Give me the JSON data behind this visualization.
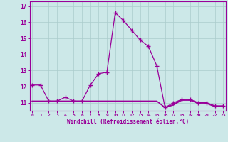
{
  "xlabel": "Windchill (Refroidissement éolien,°C)",
  "x": [
    0,
    1,
    2,
    3,
    4,
    5,
    6,
    7,
    8,
    9,
    10,
    11,
    12,
    13,
    14,
    15,
    16,
    17,
    18,
    19,
    20,
    21,
    22,
    23
  ],
  "line1": [
    12.1,
    12.1,
    11.1,
    11.1,
    11.35,
    11.1,
    11.1,
    12.1,
    12.8,
    12.9,
    16.6,
    16.1,
    15.5,
    14.9,
    14.5,
    13.3,
    10.7,
    11.0,
    11.2,
    11.2,
    11.0,
    11.0,
    10.8,
    10.8
  ],
  "line2": [
    11.1,
    11.1,
    11.1,
    11.1,
    11.1,
    11.1,
    11.1,
    11.1,
    11.1,
    11.1,
    11.1,
    11.1,
    11.1,
    11.1,
    11.1,
    11.1,
    10.7,
    10.9,
    11.2,
    11.2,
    11.0,
    11.0,
    10.8,
    10.8
  ],
  "line3": [
    11.1,
    11.1,
    11.1,
    11.1,
    11.1,
    11.1,
    11.1,
    11.1,
    11.1,
    11.1,
    11.1,
    11.1,
    11.1,
    11.1,
    11.1,
    11.1,
    10.7,
    10.85,
    11.15,
    11.15,
    10.95,
    10.95,
    10.75,
    10.75
  ],
  "line_color": "#990099",
  "bg_color": "#cce8e8",
  "grid_color": "#aacccc",
  "ylim": [
    10.5,
    17.3
  ],
  "yticks": [
    11,
    12,
    13,
    14,
    15,
    16,
    17
  ],
  "xticks": [
    0,
    1,
    2,
    3,
    4,
    5,
    6,
    7,
    8,
    9,
    10,
    11,
    12,
    13,
    14,
    15,
    16,
    17,
    18,
    19,
    20,
    21,
    22,
    23
  ]
}
